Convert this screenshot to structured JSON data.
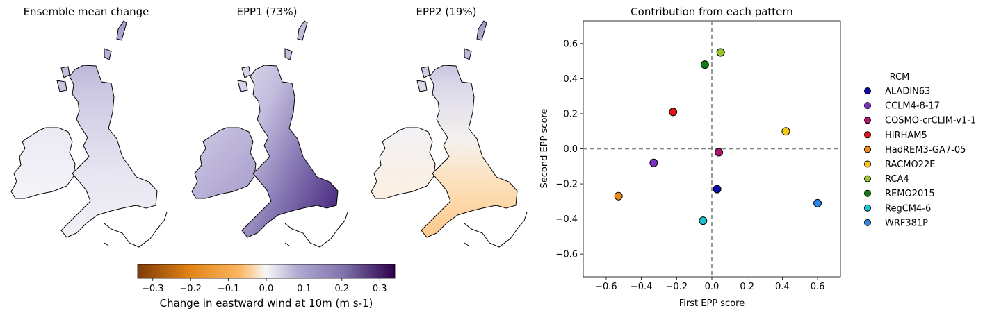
{
  "maps": [
    {
      "title": "Ensemble mean change"
    },
    {
      "title": "EPP1 (73%)"
    },
    {
      "title": "EPP2 (19%)"
    }
  ],
  "colorbar": {
    "label": "Change in eastward wind at 10m (m s-1)",
    "range": [
      -0.34,
      0.34
    ],
    "ticks": [
      "−0.3",
      "−0.2",
      "−0.1",
      "0.0",
      "0.1",
      "0.2",
      "0.3"
    ],
    "tick_values": [
      -0.3,
      -0.2,
      -0.1,
      0.0,
      0.1,
      0.2,
      0.3
    ],
    "colormap": "PuOr",
    "colors": [
      "#7f3b08",
      "#e08214",
      "#fdb863",
      "#f7f7f7",
      "#b2abd2",
      "#8073ac",
      "#2d004b"
    ]
  },
  "chart_data": {
    "type": "scatter",
    "title": "Contribution from each pattern",
    "xlabel": "First EPP score",
    "ylabel": "Second EPP score",
    "xlim": [
      -0.73,
      0.73
    ],
    "ylim": [
      -0.73,
      0.73
    ],
    "xticks": [
      "−0.6",
      "−0.4",
      "−0.2",
      "0.0",
      "0.2",
      "0.4",
      "0.6"
    ],
    "yticks": [
      "−0.6",
      "−0.4",
      "−0.2",
      "0.0",
      "0.2",
      "0.4",
      "0.6"
    ],
    "tick_values": [
      -0.6,
      -0.4,
      -0.2,
      0.0,
      0.2,
      0.4,
      0.6
    ],
    "reference_lines": {
      "x": 0,
      "y": 0,
      "style": "dashed",
      "color": "#808080"
    },
    "legend": {
      "title": "RCM",
      "placement": "outside-right"
    },
    "series": [
      {
        "name": "ALADIN63",
        "x": 0.03,
        "y": -0.23,
        "color": "#0a0aaa"
      },
      {
        "name": "CCLM4-8-17",
        "x": -0.33,
        "y": -0.08,
        "color": "#7b2fbf"
      },
      {
        "name": "COSMO-crCLIM-v1-1",
        "x": 0.04,
        "y": -0.02,
        "color": "#b01570"
      },
      {
        "name": "HIRHAM5",
        "x": -0.22,
        "y": 0.21,
        "color": "#e8101a"
      },
      {
        "name": "HadREM3-GA7-05",
        "x": -0.53,
        "y": -0.27,
        "color": "#f28a1a"
      },
      {
        "name": "RACMO22E",
        "x": 0.42,
        "y": 0.1,
        "color": "#f5c816"
      },
      {
        "name": "RCA4",
        "x": 0.05,
        "y": 0.55,
        "color": "#99c22e"
      },
      {
        "name": "REMO2015",
        "x": -0.04,
        "y": 0.48,
        "color": "#127a12"
      },
      {
        "name": "RegCM4-6",
        "x": -0.05,
        "y": -0.41,
        "color": "#19c3cf"
      },
      {
        "name": "WRF381P",
        "x": 0.6,
        "y": -0.31,
        "color": "#2e86e6"
      }
    ]
  }
}
